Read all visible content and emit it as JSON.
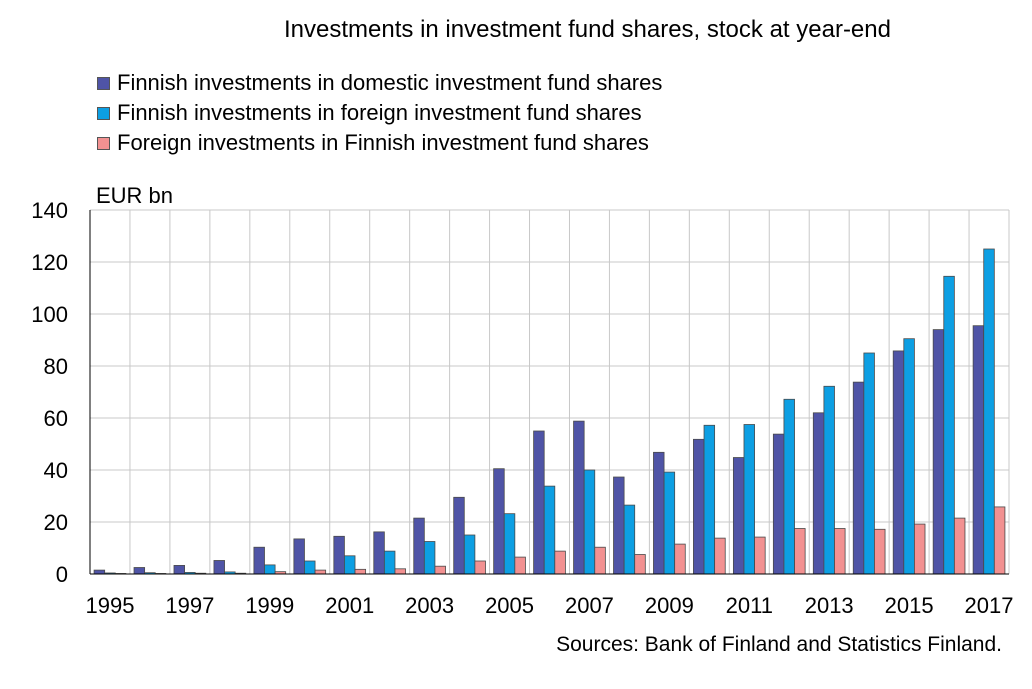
{
  "header": {
    "title": "Investments in investment fund shares, stock at year-end"
  },
  "colors": {
    "domestic": "#4f54a6",
    "foreign": "#0d9fe3",
    "foreign_in_finnish": "#f29191",
    "grid": "#c8c8c8"
  },
  "footer": {
    "source": "Sources: Bank of Finland and Statistics Finland."
  },
  "chart_data": {
    "type": "bar",
    "title": "Investments in investment fund shares, stock at year-end",
    "ylabel": "EUR bn",
    "ylim": [
      0,
      140
    ],
    "yticks": [
      0,
      20,
      40,
      60,
      80,
      100,
      120,
      140
    ],
    "grid": true,
    "legend_position": "top-left",
    "categories": [
      "1995",
      "1996",
      "1997",
      "1998",
      "1999",
      "2000",
      "2001",
      "2002",
      "2003",
      "2004",
      "2005",
      "2006",
      "2007",
      "2008",
      "2009",
      "2010",
      "2011",
      "2012",
      "2013",
      "2014",
      "2015",
      "2016",
      "2017"
    ],
    "xtick_labels": [
      "1995",
      "1997",
      "1999",
      "2001",
      "2003",
      "2005",
      "2007",
      "2009",
      "2011",
      "2013",
      "2015",
      "2017"
    ],
    "series": [
      {
        "name": "Finnish investments in domestic investment fund shares",
        "values": [
          1.5,
          2.5,
          3.3,
          5.2,
          10.3,
          13.5,
          14.5,
          16.2,
          21.5,
          29.5,
          40.5,
          55.0,
          58.8,
          37.3,
          46.8,
          51.8,
          44.8,
          53.8,
          62.0,
          73.8,
          85.8,
          94.0,
          95.5
        ]
      },
      {
        "name": "Finnish investments in foreign investment fund shares",
        "values": [
          0.4,
          0.5,
          0.6,
          0.8,
          3.5,
          5.0,
          7.0,
          8.8,
          12.5,
          15.0,
          23.2,
          33.8,
          40.0,
          26.5,
          39.2,
          57.2,
          57.5,
          67.2,
          72.2,
          85.0,
          90.5,
          114.5,
          125.0
        ]
      },
      {
        "name": "Foreign investments in Finnish investment fund shares",
        "values": [
          0.2,
          0.2,
          0.3,
          0.3,
          0.9,
          1.5,
          1.8,
          2.0,
          3.0,
          5.0,
          6.5,
          8.8,
          10.3,
          7.5,
          11.5,
          13.8,
          14.2,
          17.5,
          17.5,
          17.2,
          19.2,
          21.5,
          25.8
        ]
      }
    ]
  }
}
